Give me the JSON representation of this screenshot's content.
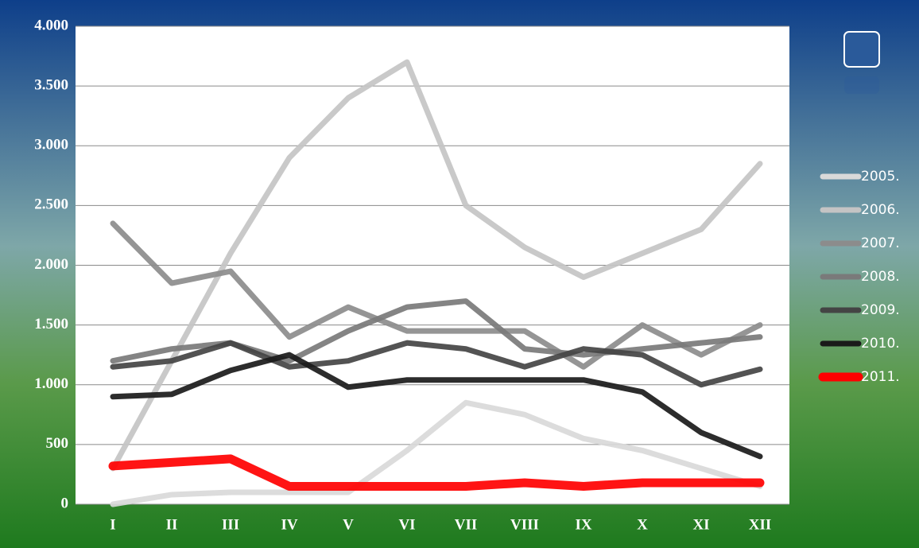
{
  "chart_data": {
    "type": "line",
    "categories": [
      "I",
      "II",
      "III",
      "IV",
      "V",
      "VI",
      "VII",
      "VIII",
      "IX",
      "X",
      "XI",
      "XII"
    ],
    "series": [
      {
        "name": "2005.",
        "color": "#d9d9d9",
        "values": [
          0,
          80,
          100,
          100,
          100,
          450,
          850,
          750,
          550,
          450,
          300,
          150
        ]
      },
      {
        "name": "2006.",
        "color": "#c4c4c4",
        "values": [
          300,
          1200,
          2100,
          2900,
          3400,
          3700,
          2500,
          2150,
          1900,
          2100,
          2300,
          2850
        ]
      },
      {
        "name": "2007.",
        "color": "#8c8c8c",
        "values": [
          2350,
          1850,
          1950,
          1400,
          1650,
          1450,
          1450,
          1450,
          1150,
          1500,
          1250,
          1500
        ]
      },
      {
        "name": "2008.",
        "color": "#7a7a7a",
        "values": [
          1200,
          1300,
          1350,
          1200,
          1450,
          1650,
          1700,
          1300,
          1250,
          1300,
          1350,
          1400
        ]
      },
      {
        "name": "2009.",
        "color": "#444444",
        "values": [
          1150,
          1200,
          1350,
          1150,
          1200,
          1350,
          1300,
          1150,
          1300,
          1250,
          1000,
          1130
        ]
      },
      {
        "name": "2010.",
        "color": "#1a1a1a",
        "values": [
          900,
          920,
          1120,
          1250,
          980,
          1040,
          1040,
          1040,
          1040,
          940,
          600,
          400
        ]
      },
      {
        "name": "2011.",
        "color": "#ff0000",
        "values": [
          320,
          350,
          380,
          150,
          150,
          150,
          150,
          180,
          150,
          180,
          180,
          180
        ]
      }
    ],
    "ylim": [
      0,
      4000
    ],
    "yticks": [
      0,
      500,
      {
        "value": 1000,
        "label": "1.000"
      },
      {
        "value": 1500,
        "label": "1.500"
      },
      {
        "value": 2000,
        "label": "2.000"
      },
      {
        "value": 2500,
        "label": "2.500"
      },
      {
        "value": 3000,
        "label": "3.000"
      },
      {
        "value": 3500,
        "label": "3.500"
      },
      {
        "value": 4000,
        "label": "4.000"
      }
    ],
    "grid": true,
    "legend": "right"
  }
}
